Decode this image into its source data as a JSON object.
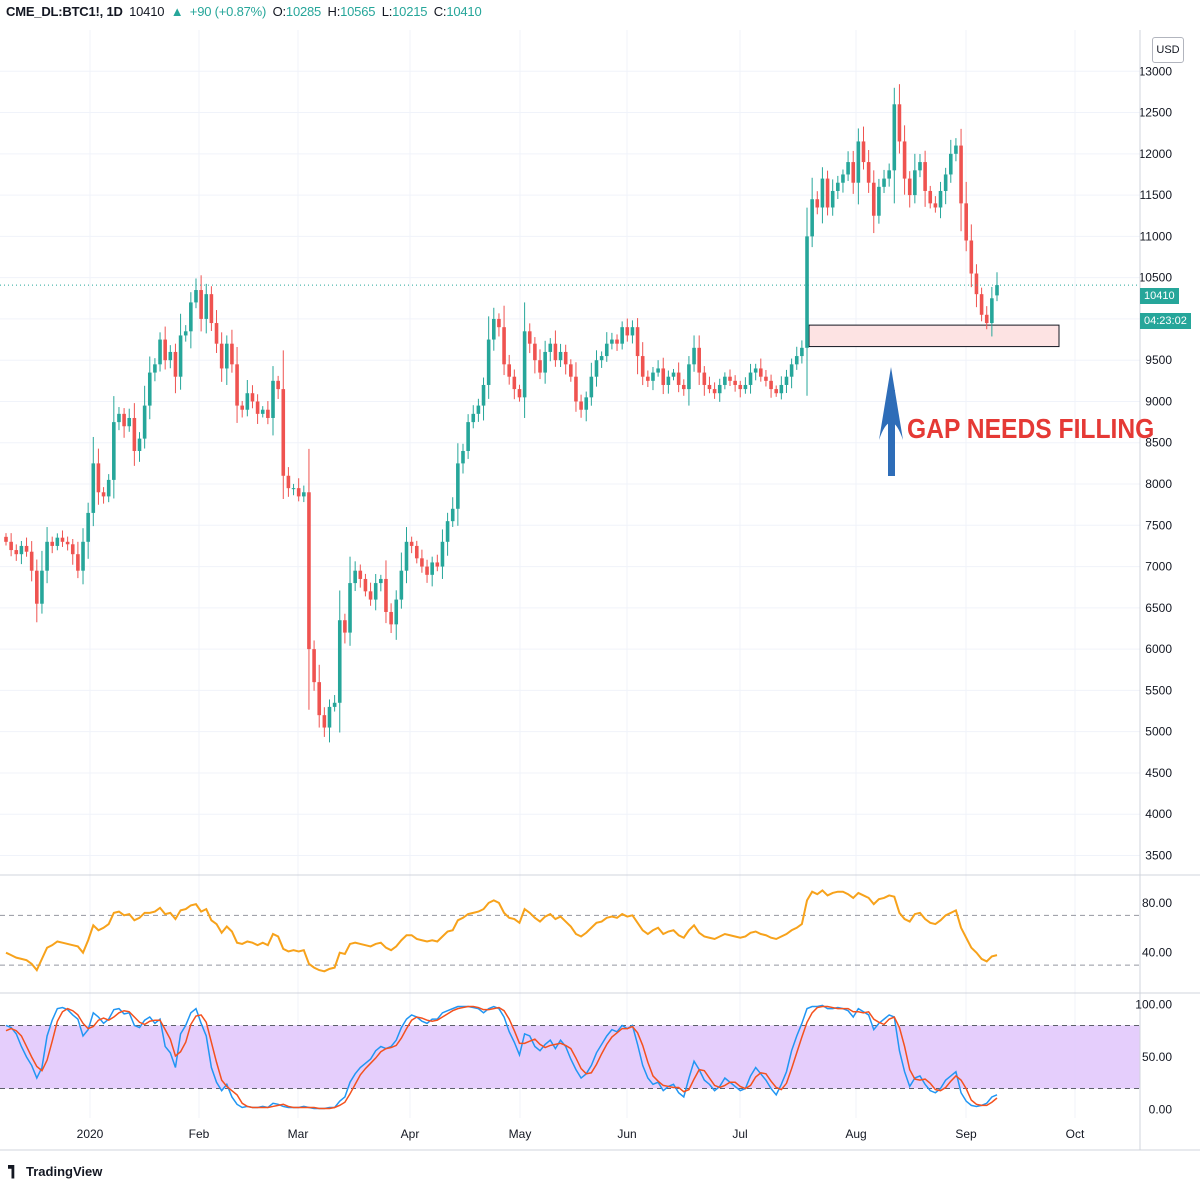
{
  "header": {
    "symbol": "CME_DL:BTC1!, 1D",
    "last": "10410",
    "change": "+90 (+0.87%)",
    "o_label": "O:",
    "o_value": "10285",
    "h_label": "H:",
    "h_value": "10565",
    "l_label": "L:",
    "l_value": "10215",
    "c_label": "C:",
    "c_value": "10410"
  },
  "annotation": {
    "text": "GAP NEEDS FILLING",
    "color": "#e53935"
  },
  "price_tag": {
    "price": "10410",
    "countdown": "04:23:02"
  },
  "currency": "USD",
  "branding": "TradingView",
  "colors": {
    "up": "#26a69a",
    "down": "#ef5350",
    "rsi": "#f7a21b",
    "k": "#2196f3",
    "d": "#f4511e",
    "band": "#e1c6fb",
    "gap_box": "#fde3e3",
    "arrow": "#2e6db8"
  },
  "chart_data": [
    {
      "type": "candlestick",
      "panel": "price",
      "yaxis": {
        "ticks": [
          3500,
          4000,
          4500,
          5000,
          5500,
          6000,
          6500,
          7000,
          7500,
          8000,
          8500,
          9000,
          9500,
          10000,
          10500,
          11000,
          11500,
          12000,
          12500,
          13000
        ],
        "range": [
          3300,
          13500
        ]
      },
      "xaxis": {
        "labels": [
          "2020",
          "Feb",
          "Mar",
          "Apr",
          "May",
          "Jun",
          "Jul",
          "Aug",
          "Sep",
          "Oct"
        ]
      },
      "gap_zone": {
        "low": 9665,
        "high": 9925
      },
      "series_close": [
        7300,
        7200,
        7150,
        7250,
        7180,
        6950,
        6550,
        6950,
        7300,
        7250,
        7350,
        7300,
        7270,
        7150,
        6950,
        7300,
        7650,
        8250,
        7900,
        7850,
        8050,
        8750,
        8850,
        8700,
        8800,
        8400,
        8550,
        8950,
        9350,
        9450,
        9750,
        9500,
        9600,
        9300,
        9800,
        9850,
        10200,
        10350,
        10000,
        10300,
        9950,
        9700,
        9400,
        9700,
        9450,
        8950,
        8900,
        9100,
        9000,
        8850,
        8900,
        8800,
        9250,
        9150,
        8100,
        7950,
        7950,
        7850,
        7900,
        6000,
        5600,
        5200,
        5050,
        5300,
        5350,
        6350,
        6200,
        6800,
        6950,
        6850,
        6700,
        6600,
        6800,
        6850,
        6450,
        6300,
        6600,
        6950,
        7300,
        7250,
        7100,
        7000,
        6900,
        7050,
        7000,
        7300,
        7550,
        7700,
        8250,
        8400,
        8750,
        8850,
        8950,
        9200,
        9750,
        10000,
        9900,
        9450,
        9300,
        9150,
        9050,
        9850,
        9700,
        9500,
        9350,
        9600,
        9700,
        9500,
        9600,
        9450,
        9300,
        9000,
        8900,
        9050,
        9300,
        9500,
        9550,
        9700,
        9750,
        9700,
        9900,
        9800,
        9900,
        9550,
        9300,
        9250,
        9350,
        9400,
        9200,
        9300,
        9350,
        9200,
        9150,
        9450,
        9650,
        9350,
        9200,
        9150,
        9100,
        9200,
        9300,
        9250,
        9200,
        9150,
        9200,
        9350,
        9400,
        9300,
        9250,
        9150,
        9100,
        9200,
        9300,
        9450,
        9550,
        9650,
        11000,
        11450,
        11350,
        11700,
        11350,
        11550,
        11650,
        11750,
        11900,
        11650,
        12150,
        11900,
        11650,
        11250,
        11600,
        11700,
        11800,
        12600,
        12150,
        11700,
        11500,
        11800,
        11900,
        11550,
        11400,
        11350,
        11550,
        11750,
        12000,
        12100,
        11400,
        10950,
        10550,
        10300,
        10050,
        9950,
        10250,
        10410
      ],
      "last_candle": {
        "o": 10285,
        "h": 10565,
        "l": 10215,
        "c": 10410
      }
    },
    {
      "type": "line",
      "panel": "rsi",
      "yaxis": {
        "ticks": [
          40.0,
          80.0
        ],
        "range": [
          10,
          100
        ],
        "bands": [
          30,
          70
        ]
      },
      "series": [
        {
          "values": [
            40,
            38,
            36,
            35,
            34,
            31,
            26,
            35,
            44,
            46,
            49,
            48,
            47,
            46,
            45,
            40,
            50,
            62,
            58,
            60,
            63,
            72,
            73,
            70,
            71,
            66,
            68,
            72,
            72,
            73,
            76,
            71,
            72,
            67,
            74,
            75,
            78,
            79,
            73,
            75,
            66,
            63,
            56,
            61,
            57,
            48,
            47,
            49,
            48,
            46,
            48,
            46,
            55,
            53,
            43,
            41,
            42,
            41,
            42,
            31,
            28,
            26,
            25,
            27,
            28,
            40,
            39,
            47,
            48,
            47,
            46,
            45,
            47,
            48,
            44,
            42,
            45,
            50,
            54,
            54,
            51,
            50,
            49,
            50,
            49,
            53,
            57,
            58,
            66,
            68,
            71,
            72,
            73,
            75,
            80,
            82,
            80,
            72,
            68,
            67,
            64,
            75,
            72,
            68,
            65,
            69,
            71,
            67,
            69,
            65,
            61,
            55,
            53,
            56,
            60,
            64,
            65,
            68,
            69,
            68,
            71,
            69,
            70,
            64,
            58,
            55,
            58,
            60,
            55,
            57,
            58,
            54,
            52,
            58,
            62,
            56,
            53,
            52,
            51,
            53,
            55,
            54,
            53,
            52,
            53,
            56,
            57,
            55,
            54,
            52,
            51,
            53,
            55,
            58,
            60,
            63,
            82,
            89,
            87,
            90,
            86,
            88,
            89,
            89,
            87,
            84,
            88,
            86,
            84,
            79,
            83,
            84,
            86,
            85,
            72,
            67,
            65,
            71,
            72,
            67,
            64,
            63,
            66,
            70,
            72,
            74,
            60,
            52,
            44,
            40,
            35,
            33,
            37,
            38
          ]
        }
      ]
    },
    {
      "type": "line",
      "panel": "stoch",
      "yaxis": {
        "ticks": [
          0.0,
          50.0,
          100.0
        ],
        "range": [
          -8,
          108
        ],
        "bands": [
          20,
          80
        ]
      },
      "series": [
        {
          "values": [
            80,
            78,
            72,
            60,
            50,
            42,
            30,
            40,
            70,
            85,
            96,
            97,
            95,
            90,
            86,
            70,
            76,
            92,
            88,
            82,
            86,
            95,
            96,
            91,
            92,
            80,
            78,
            85,
            88,
            82,
            86,
            60,
            54,
            40,
            72,
            80,
            92,
            96,
            82,
            70,
            40,
            26,
            18,
            24,
            12,
            5,
            2,
            3,
            2,
            2,
            3,
            2,
            6,
            5,
            3,
            2,
            2,
            2,
            3,
            2,
            1,
            1,
            1,
            2,
            2,
            8,
            12,
            26,
            34,
            40,
            44,
            48,
            56,
            60,
            58,
            60,
            66,
            78,
            86,
            90,
            88,
            84,
            82,
            86,
            86,
            92,
            94,
            96,
            98,
            98,
            98,
            97,
            96,
            92,
            96,
            98,
            96,
            88,
            74,
            64,
            52,
            72,
            70,
            60,
            56,
            62,
            66,
            58,
            66,
            60,
            48,
            38,
            30,
            34,
            42,
            54,
            62,
            70,
            76,
            74,
            80,
            77,
            80,
            62,
            42,
            30,
            24,
            26,
            18,
            22,
            24,
            16,
            12,
            30,
            46,
            38,
            28,
            24,
            18,
            22,
            30,
            26,
            22,
            18,
            20,
            32,
            40,
            34,
            28,
            20,
            14,
            24,
            36,
            56,
            70,
            82,
            96,
            98,
            98,
            99,
            96,
            96,
            97,
            96,
            94,
            88,
            96,
            93,
            90,
            76,
            82,
            86,
            90,
            88,
            56,
            36,
            22,
            30,
            32,
            24,
            18,
            16,
            20,
            28,
            32,
            36,
            16,
            8,
            4,
            3,
            4,
            6,
            12,
            14
          ]
        },
        {
          "values": [
            75,
            77,
            75,
            70,
            60,
            50,
            41,
            37,
            47,
            65,
            84,
            93,
            96,
            94,
            90,
            82,
            77,
            79,
            85,
            87,
            85,
            88,
            92,
            94,
            93,
            88,
            83,
            81,
            84,
            85,
            85,
            76,
            67,
            51,
            55,
            64,
            81,
            89,
            90,
            83,
            64,
            45,
            28,
            22,
            18,
            14,
            6,
            3,
            2,
            2,
            2,
            2,
            3,
            4,
            5,
            3,
            2,
            2,
            2,
            2,
            2,
            1,
            1,
            1,
            2,
            4,
            7,
            15,
            24,
            33,
            39,
            44,
            49,
            55,
            58,
            59,
            61,
            68,
            77,
            85,
            88,
            87,
            85,
            84,
            85,
            88,
            91,
            94,
            96,
            97,
            98,
            98,
            97,
            95,
            95,
            96,
            97,
            94,
            86,
            75,
            63,
            63,
            65,
            67,
            62,
            59,
            61,
            62,
            63,
            61,
            58,
            49,
            39,
            34,
            35,
            43,
            53,
            62,
            69,
            73,
            77,
            77,
            79,
            73,
            61,
            45,
            32,
            27,
            23,
            22,
            21,
            21,
            17,
            19,
            29,
            38,
            37,
            30,
            23,
            21,
            23,
            26,
            26,
            22,
            20,
            23,
            31,
            35,
            34,
            27,
            21,
            19,
            25,
            39,
            54,
            69,
            83,
            92,
            97,
            98,
            98,
            97,
            96,
            96,
            96,
            93,
            93,
            92,
            93,
            86,
            83,
            81,
            86,
            88,
            78,
            60,
            38,
            29,
            28,
            29,
            25,
            19,
            18,
            21,
            27,
            32,
            28,
            20,
            9,
            5,
            4,
            4,
            7,
            11
          ]
        }
      ]
    }
  ]
}
